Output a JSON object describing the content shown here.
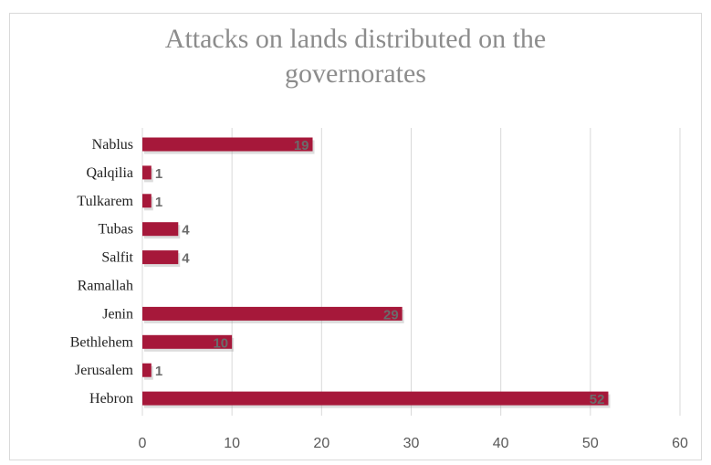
{
  "chart_data": {
    "type": "bar",
    "orientation": "horizontal",
    "title": "Attacks on lands distributed on the governorates",
    "categories": [
      "Nablus",
      "Qalqilia",
      "Tulkarem",
      "Tubas",
      "Salfit",
      "Ramallah",
      "Jenin",
      "Bethlehem",
      "Jerusalem",
      "Hebron"
    ],
    "values": [
      19,
      1,
      1,
      4,
      4,
      null,
      29,
      10,
      1,
      52
    ],
    "data_labels": [
      "19",
      "1",
      "1",
      "4",
      "4",
      "",
      "29",
      "10",
      "1",
      "52"
    ],
    "xlim": [
      0,
      60
    ],
    "xticks": [
      0,
      10,
      20,
      30,
      40,
      50,
      60
    ],
    "grid": true,
    "legend": "none",
    "bar_color": "#a6183a",
    "grid_color": "#d9d9d9"
  }
}
